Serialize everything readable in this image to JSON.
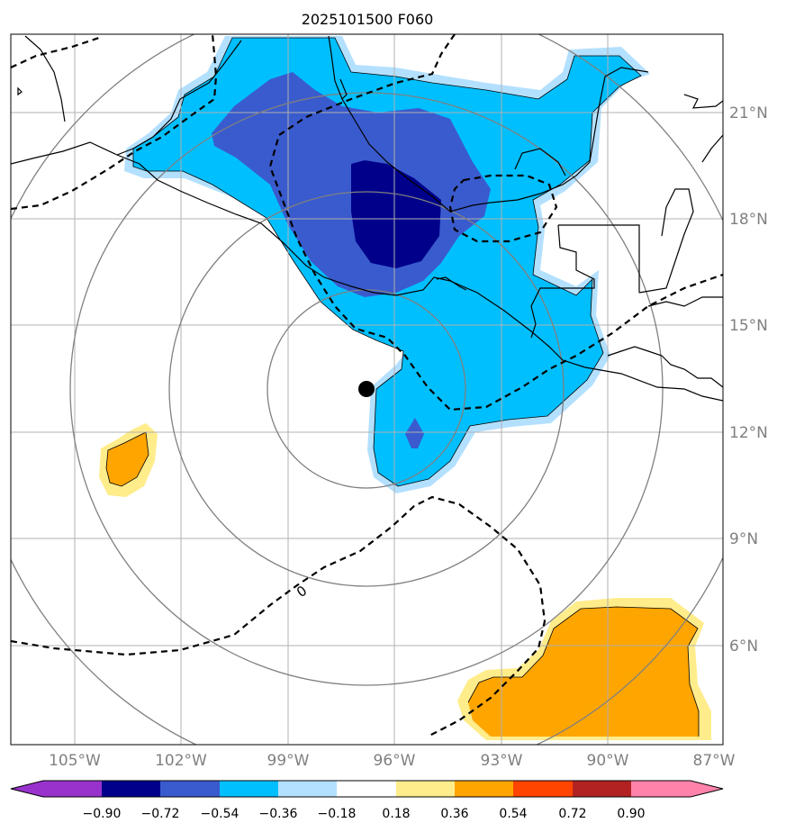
{
  "title": "2025101500 F060",
  "map": {
    "lat_labels": [
      "21°N",
      "18°N",
      "15°N",
      "12°N",
      "9°N",
      "6°N"
    ],
    "lon_labels": [
      "105°W",
      "102°W",
      "99°W",
      "96°W",
      "93°W",
      "90°W",
      "87°W"
    ],
    "contour_label": "0",
    "center_marker": "storm-center"
  },
  "colorbar": {
    "ticks": [
      "−0.90",
      "−0.72",
      "−0.54",
      "−0.36",
      "−0.18",
      "0.18",
      "0.36",
      "0.54",
      "0.72",
      "0.90"
    ],
    "colors": [
      "#9932cc",
      "#00008b",
      "#3a5bcd",
      "#00bfff",
      "#b3e0ff",
      "#ffffff",
      "#ffec8b",
      "#ffa500",
      "#ff4500",
      "#b22222",
      "#ff82ab"
    ]
  },
  "fill_colors": {
    "light_blue": "#b3e0ff",
    "blue": "#00bfff",
    "royal_blue": "#3a5bcd",
    "navy": "#00008b",
    "light_yellow": "#ffec8b",
    "orange": "#ffa500"
  }
}
